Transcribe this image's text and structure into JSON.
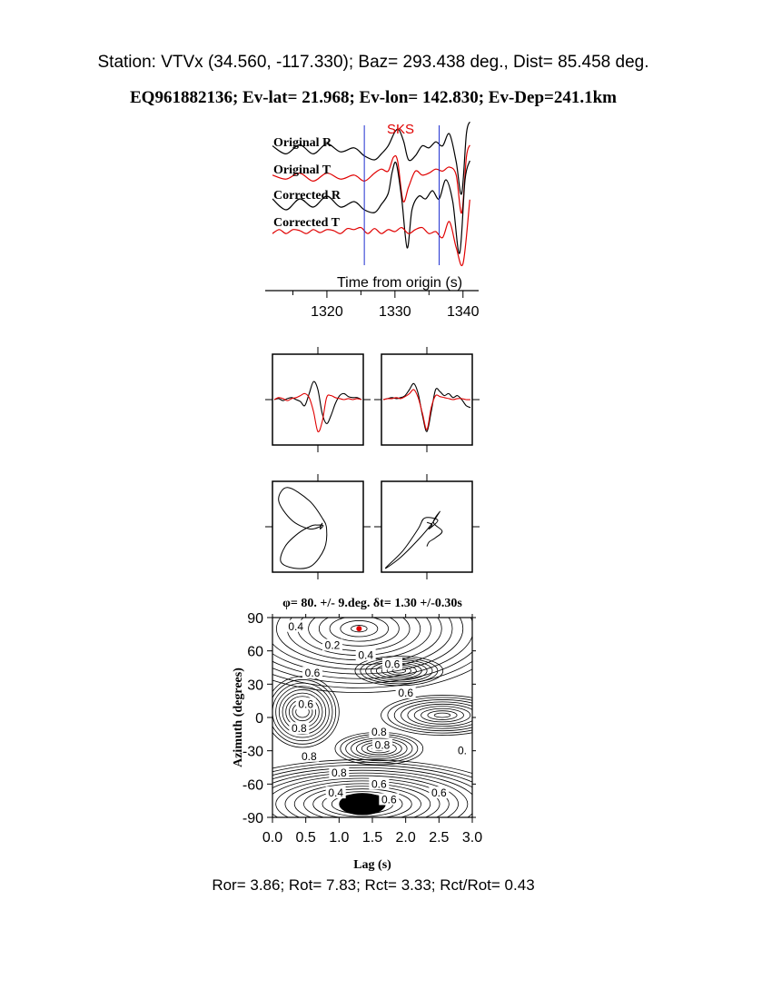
{
  "header": {
    "station_line": "Station: VTVx (34.560, -117.330); Baz=  293.438 deg., Dist=   85.458 deg.",
    "event_line": "EQ961882136; Ev-lat=  21.968; Ev-lon= 142.830; Ev-Dep=241.1km"
  },
  "footer": {
    "ratios_line": "Ror= 3.86; Rot= 7.83; Rct= 3.33; Rct/Rot= 0.43"
  },
  "colors": {
    "radial": "#000000",
    "transverse": "#e00000",
    "window_marker": "#1f2fd0",
    "phase_label": "#e00000",
    "best_fit_marker": "#e00000"
  },
  "chart_data": [
    {
      "type": "line",
      "panel": "waveforms",
      "phase_label": "SKS",
      "xlabel": "Time from origin (s)",
      "xticks": [
        1320,
        1330,
        1340
      ],
      "xlim": [
        1312,
        1341.5
      ],
      "window": [
        1325.5,
        1336.5
      ],
      "series": [
        {
          "name": "Original R",
          "color": "#000000",
          "t": [
            1312,
            1314,
            1316,
            1318,
            1320,
            1322,
            1324,
            1325.5,
            1327,
            1328,
            1329,
            1330,
            1330.6,
            1331.3,
            1332,
            1333,
            1334,
            1335,
            1336,
            1337,
            1338,
            1339,
            1339.8,
            1340.5,
            1341
          ],
          "values": [
            0.2,
            -0.2,
            0.25,
            -0.2,
            0.3,
            -0.1,
            0.1,
            -0.3,
            -0.5,
            -0.2,
            0.2,
            0.9,
            1.0,
            0.4,
            -0.5,
            -0.3,
            0.2,
            0.1,
            0.4,
            0.2,
            0.8,
            -0.6,
            -2.2,
            0.8,
            1.4
          ]
        },
        {
          "name": "Original T",
          "color": "#e00000",
          "t": [
            1312,
            1314,
            1316,
            1318,
            1320,
            1322,
            1324,
            1325.5,
            1327,
            1328,
            1329,
            1329.8,
            1330.4,
            1331.2,
            1332,
            1333,
            1334,
            1335,
            1336,
            1337,
            1338,
            1339,
            1339.8,
            1340.5,
            1341
          ],
          "values": [
            0.1,
            -0.1,
            0.2,
            -0.2,
            0.2,
            -0.1,
            0.1,
            -0.2,
            0.2,
            0.4,
            0.3,
            1.0,
            0.8,
            -1.2,
            -0.5,
            0.3,
            0.1,
            0.2,
            0.4,
            0.3,
            0.5,
            0.1,
            -1.8,
            1.0,
            1.6
          ]
        },
        {
          "name": "Corrected R",
          "color": "#000000",
          "t": [
            1312,
            1314,
            1316,
            1318,
            1320,
            1322,
            1324,
            1325.5,
            1327,
            1328,
            1329,
            1329.6,
            1330.2,
            1331,
            1331.8,
            1332.5,
            1333.5,
            1334.5,
            1335.5,
            1336.5,
            1337.5,
            1338.5,
            1339.5,
            1340.3,
            1341
          ],
          "values": [
            0.2,
            -0.2,
            0.2,
            -0.1,
            0.3,
            -0.1,
            0.1,
            -0.2,
            -0.3,
            0.0,
            0.4,
            1.2,
            1.5,
            0.2,
            -1.6,
            -0.2,
            0.3,
            0.2,
            0.5,
            0.2,
            0.9,
            0.1,
            -1.8,
            0.9,
            1.6
          ]
        },
        {
          "name": "Corrected T",
          "color": "#e00000",
          "t": [
            1312,
            1313,
            1314,
            1315,
            1316,
            1317,
            1318,
            1319,
            1320,
            1321,
            1322,
            1323,
            1324,
            1325,
            1326,
            1327,
            1328,
            1329,
            1330,
            1331,
            1332,
            1333,
            1334,
            1335,
            1336,
            1337,
            1338,
            1339,
            1340,
            1341
          ],
          "values": [
            -0.1,
            0.1,
            -0.1,
            0.1,
            0.05,
            -0.1,
            0.1,
            -0.05,
            0.1,
            0.05,
            -0.1,
            0.15,
            0.1,
            0.2,
            -0.1,
            0.15,
            -0.1,
            0.1,
            0.0,
            0.2,
            -0.1,
            0.1,
            0.2,
            -0.1,
            0.0,
            -0.3,
            0.5,
            -0.8,
            -1.6,
            1.6
          ]
        }
      ]
    },
    {
      "type": "line",
      "panel": "windowed-original",
      "series": [
        {
          "name": "R",
          "color": "#000000",
          "values": [
            0,
            0.05,
            -0.05,
            0.05,
            0.1,
            0,
            -0.1,
            -0.3,
            0.3,
            0.9,
            0.5,
            -0.7,
            -1.2,
            -0.8,
            -0.2,
            0.2,
            0.3,
            0.15,
            0.1,
            0.1,
            0
          ]
        },
        {
          "name": "T",
          "color": "#e00000",
          "values": [
            0,
            0.1,
            0.05,
            -0.05,
            0.05,
            0.1,
            0.2,
            0.3,
            0.1,
            -0.6,
            -1.6,
            -1.1,
            0.1,
            0.2,
            0.1,
            0.05,
            0,
            0.05,
            0,
            0.05,
            0
          ]
        }
      ]
    },
    {
      "type": "line",
      "panel": "windowed-corrected",
      "series": [
        {
          "name": "R",
          "color": "#000000",
          "values": [
            0,
            0.05,
            0.1,
            0.05,
            0.1,
            0.2,
            0.5,
            0.8,
            0.3,
            -0.8,
            -1.6,
            -0.6,
            0.5,
            0.4,
            0.2,
            0.3,
            0.1,
            0.2,
            0,
            -0.3,
            -0.4
          ]
        },
        {
          "name": "T",
          "color": "#e00000",
          "values": [
            0,
            0.05,
            0.05,
            0.1,
            0.05,
            0.15,
            0.3,
            0.5,
            0.1,
            -0.7,
            -1.5,
            -0.4,
            0.2,
            0.15,
            0.1,
            0.05,
            0,
            0.05,
            0.05,
            0,
            0
          ]
        }
      ]
    },
    {
      "type": "scatter",
      "panel": "particle-motion-original",
      "points": [
        [
          0.05,
          0.0
        ],
        [
          0.1,
          0.08
        ],
        [
          0.05,
          -0.05
        ],
        [
          0.12,
          0.03
        ],
        [
          0.0,
          0.04
        ],
        [
          -0.15,
          0.02
        ],
        [
          -0.45,
          -0.15
        ],
        [
          -0.75,
          -0.45
        ],
        [
          -0.85,
          -0.8
        ],
        [
          -0.55,
          -0.95
        ],
        [
          -0.15,
          -0.9
        ],
        [
          0.15,
          -0.5
        ],
        [
          0.2,
          -0.05
        ],
        [
          0.1,
          0.2
        ],
        [
          -0.2,
          0.6
        ],
        [
          -0.7,
          0.9
        ],
        [
          -0.9,
          0.6
        ],
        [
          -0.6,
          0.15
        ],
        [
          -0.2,
          -0.05
        ],
        [
          0.05,
          0.0
        ]
      ]
    },
    {
      "type": "scatter",
      "panel": "particle-motion-corrected",
      "points": [
        [
          0.0,
          0.1
        ],
        [
          0.12,
          0.05
        ],
        [
          0.05,
          -0.05
        ],
        [
          0.25,
          0.15
        ],
        [
          -0.05,
          0.2
        ],
        [
          -0.2,
          -0.05
        ],
        [
          -0.55,
          -0.55
        ],
        [
          -0.95,
          -0.95
        ],
        [
          -0.6,
          -0.7
        ],
        [
          -0.2,
          -0.3
        ],
        [
          0.1,
          0.05
        ],
        [
          0.3,
          0.35
        ],
        [
          0.15,
          0.1
        ],
        [
          0.35,
          -0.1
        ],
        [
          0.2,
          -0.25
        ],
        [
          0.05,
          -0.35
        ],
        [
          0.0,
          -0.45
        ]
      ]
    },
    {
      "type": "heatmap",
      "panel": "grid-search",
      "title": "φ= 80. +/- 9.deg. δt= 1.30 +/-0.30s",
      "xlabel": "Lag (s)",
      "ylabel": "Azimuth (degrees)",
      "xlim": [
        0.0,
        3.0
      ],
      "ylim": [
        -90,
        90
      ],
      "xticks": [
        "0.0",
        "0.5",
        "1.0",
        "1.5",
        "2.0",
        "2.5",
        "3.0"
      ],
      "yticks": [
        "90",
        "60",
        "30",
        "0",
        "-30",
        "-60",
        "-90"
      ],
      "best_fit": {
        "lag": 1.3,
        "azimuth": 80
      },
      "contour_labels": [
        "0.4",
        "0.2",
        "0.4",
        "0.6",
        "0.6",
        "0.6",
        "0.6",
        "0.8",
        "0.8",
        "0.",
        "0.8",
        "0.6",
        "0.4",
        "0.6",
        "0.6",
        "0.8",
        "0.8"
      ]
    }
  ]
}
